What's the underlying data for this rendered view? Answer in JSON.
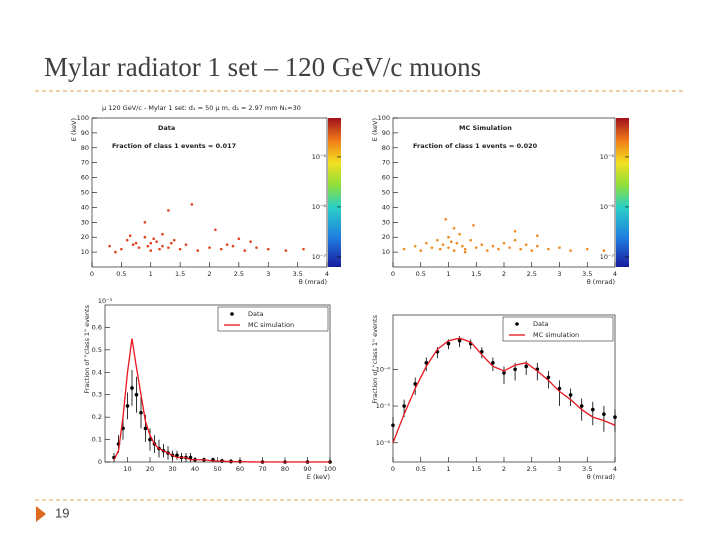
{
  "title": "Mylar radiator 1 set – 120 GeV/c muons",
  "page_number": "19",
  "chart_data": [
    {
      "type": "scatter",
      "title": "μ 120 GeV/c - Mylar 1 set: d₁ = 50 μ m, d₂ = 2.97 mm N₁=30",
      "annotations": [
        "Data",
        "Fraction of class 1 events = 0.017"
      ],
      "x_label": "θ (mrad)",
      "y_label": "E (keV)",
      "xlim": [
        0,
        4
      ],
      "xticks": [
        0,
        0.5,
        1,
        1.5,
        2,
        2.5,
        3,
        3.5,
        4
      ],
      "ylim": [
        0,
        100
      ],
      "yticks": [
        10,
        20,
        30,
        40,
        50,
        60,
        70,
        80,
        90,
        100
      ],
      "color": "#e0401c",
      "x": [
        0.3,
        0.5,
        0.6,
        0.7,
        0.8,
        0.9,
        1.0,
        1.0,
        1.1,
        1.2,
        1.2,
        1.3,
        1.4,
        1.5,
        1.6,
        1.8,
        2.0,
        2.2,
        2.4,
        2.6,
        2.8,
        3.0,
        3.3,
        0.9,
        1.3,
        2.1,
        1.7,
        0.4,
        2.5,
        3.6,
        0.75,
        1.05,
        1.15,
        0.95,
        1.35,
        2.3,
        2.7,
        0.65
      ],
      "y": [
        14,
        12,
        18,
        15,
        13,
        20,
        16,
        11,
        17,
        14,
        22,
        13,
        18,
        12,
        15,
        11,
        13,
        12,
        14,
        11,
        13,
        12,
        11,
        30,
        38,
        25,
        42,
        10,
        19,
        12,
        16,
        19,
        12,
        14,
        16,
        15,
        17,
        21
      ],
      "colorbar": {
        "zlim": [
          6.3e-08,
          6e-05
        ],
        "ticks": [
          {
            "value": 1e-05,
            "label": "10⁻⁵"
          },
          {
            "value": 1e-06,
            "label": "10⁻⁶"
          },
          {
            "value": 1e-07,
            "label": "10⁻⁷"
          }
        ]
      }
    },
    {
      "type": "scatter",
      "annotations": [
        "MC Simulation",
        "Fraction of class 1 events = 0.020"
      ],
      "x_label": "θ (mrad)",
      "y_label": "E (keV)",
      "xlim": [
        0,
        4
      ],
      "xticks": [
        0,
        0.5,
        1,
        1.5,
        2,
        2.5,
        3,
        3.5,
        4
      ],
      "ylim": [
        0,
        100
      ],
      "yticks": [
        10,
        20,
        30,
        40,
        50,
        60,
        70,
        80,
        90,
        100
      ],
      "color": "#f08a20",
      "x": [
        0.2,
        0.4,
        0.5,
        0.6,
        0.7,
        0.8,
        0.85,
        0.9,
        1.0,
        1.0,
        1.05,
        1.1,
        1.15,
        1.2,
        1.25,
        1.3,
        1.4,
        1.5,
        1.6,
        1.7,
        1.8,
        1.9,
        2.0,
        2.1,
        2.2,
        2.3,
        2.4,
        2.5,
        2.6,
        2.8,
        3.0,
        3.2,
        3.5,
        3.8,
        1.1,
        0.95,
        1.45,
        2.2,
        2.6,
        1.3
      ],
      "y": [
        12,
        14,
        11,
        16,
        13,
        18,
        12,
        15,
        20,
        13,
        17,
        11,
        16,
        22,
        14,
        12,
        18,
        13,
        15,
        11,
        14,
        12,
        16,
        13,
        18,
        12,
        15,
        11,
        14,
        12,
        13,
        11,
        12,
        11,
        26,
        32,
        28,
        24,
        21,
        10
      ],
      "colorbar": {
        "zlim": [
          6.3e-08,
          6e-05
        ],
        "ticks": [
          {
            "value": 1e-05,
            "label": "10⁻⁵"
          },
          {
            "value": 1e-06,
            "label": "10⁻⁶"
          },
          {
            "value": 1e-07,
            "label": "10⁻⁷"
          }
        ]
      }
    },
    {
      "type": "line",
      "x_label": "E (keV)",
      "y_label": "Fraction of \"class 1\" events",
      "y_multiplier": "10⁻³",
      "xlim": [
        0,
        100
      ],
      "xticks": [
        10,
        20,
        30,
        40,
        50,
        60,
        70,
        80,
        90,
        100
      ],
      "ylim": [
        0,
        0.7
      ],
      "yticks": [
        0,
        0.1,
        0.2,
        0.3,
        0.4,
        0.5,
        0.6
      ],
      "legend": "top-right",
      "x": [
        4,
        6,
        8,
        10,
        12,
        14,
        16,
        18,
        20,
        22,
        24,
        26,
        28,
        30,
        32,
        34,
        36,
        38,
        40,
        44,
        48,
        52,
        56,
        60,
        70,
        80,
        90,
        100
      ],
      "series": [
        {
          "name": "Data",
          "color": "#000000",
          "style": "markers",
          "values": [
            0.02,
            0.08,
            0.15,
            0.25,
            0.33,
            0.3,
            0.22,
            0.15,
            0.1,
            0.08,
            0.06,
            0.05,
            0.04,
            0.03,
            0.03,
            0.02,
            0.02,
            0.02,
            0.01,
            0.01,
            0.01,
            0.005,
            0.003,
            0.002,
            0,
            0,
            0,
            0
          ],
          "errors": [
            0.02,
            0.04,
            0.05,
            0.06,
            0.08,
            0.08,
            0.07,
            0.06,
            0.05,
            0.04,
            0.04,
            0.03,
            0.03,
            0.02,
            0.02,
            0.02,
            0.02,
            0.02,
            0.01,
            0.01,
            0.01,
            0.01,
            0.01,
            0.01,
            0,
            0,
            0,
            0
          ]
        },
        {
          "name": "MC simulation",
          "color": "#e8141c",
          "style": "line",
          "values": [
            0.01,
            0.05,
            0.2,
            0.4,
            0.55,
            0.42,
            0.3,
            0.18,
            0.12,
            0.08,
            0.06,
            0.05,
            0.04,
            0.03,
            0.02,
            0.02,
            0.02,
            0.01,
            0.01,
            0.01,
            0.005,
            0.004,
            0.002,
            0.001,
            0,
            0,
            0,
            0
          ]
        }
      ]
    },
    {
      "type": "line",
      "log_y": true,
      "x_label": "θ (mrad)",
      "y_label": "Fraction of \"class 1\" events",
      "xlim": [
        0,
        4
      ],
      "xticks": [
        0,
        0.5,
        1,
        1.5,
        2,
        2.5,
        3,
        3.5,
        4
      ],
      "ylim": [
        3e-07,
        0.003
      ],
      "yticks": [
        {
          "value": 1e-06,
          "label": "10⁻⁶"
        },
        {
          "value": 1e-05,
          "label": "10⁻⁵"
        },
        {
          "value": 0.0001,
          "label": "10⁻⁴"
        }
      ],
      "legend": "top-right",
      "x": [
        0,
        0.2,
        0.4,
        0.6,
        0.8,
        1.0,
        1.2,
        1.4,
        1.6,
        1.8,
        2.0,
        2.2,
        2.4,
        2.6,
        2.8,
        3.0,
        3.2,
        3.4,
        3.6,
        3.8,
        4.0
      ],
      "series": [
        {
          "name": "Data",
          "color": "#000000",
          "style": "markers",
          "values": [
            3e-06,
            1e-05,
            4e-05,
            0.00015,
            0.0003,
            0.0005,
            0.0006,
            0.0005,
            0.0003,
            0.00015,
            8e-05,
            0.0001,
            0.00012,
            0.0001,
            6e-05,
            3e-05,
            2e-05,
            1e-05,
            8e-06,
            6e-06,
            5e-06
          ],
          "errors": [
            2e-06,
            5e-06,
            2e-05,
            6e-05,
            0.0001,
            0.00015,
            0.0002,
            0.00015,
            0.0001,
            6e-05,
            4e-05,
            5e-05,
            5e-05,
            5e-05,
            3e-05,
            2e-05,
            1e-05,
            6e-06,
            5e-06,
            4e-06,
            3e-06
          ]
        },
        {
          "name": "MC simulation",
          "color": "#e8141c",
          "style": "line",
          "values": [
            1e-06,
            6e-06,
            3e-05,
            0.00012,
            0.00035,
            0.0006,
            0.0007,
            0.00055,
            0.00025,
            0.00012,
            9e-05,
            0.00013,
            0.00015,
            9e-05,
            5e-05,
            2.5e-05,
            1.5e-05,
            8e-06,
            5e-06,
            4e-06,
            3e-06
          ]
        }
      ]
    }
  ]
}
